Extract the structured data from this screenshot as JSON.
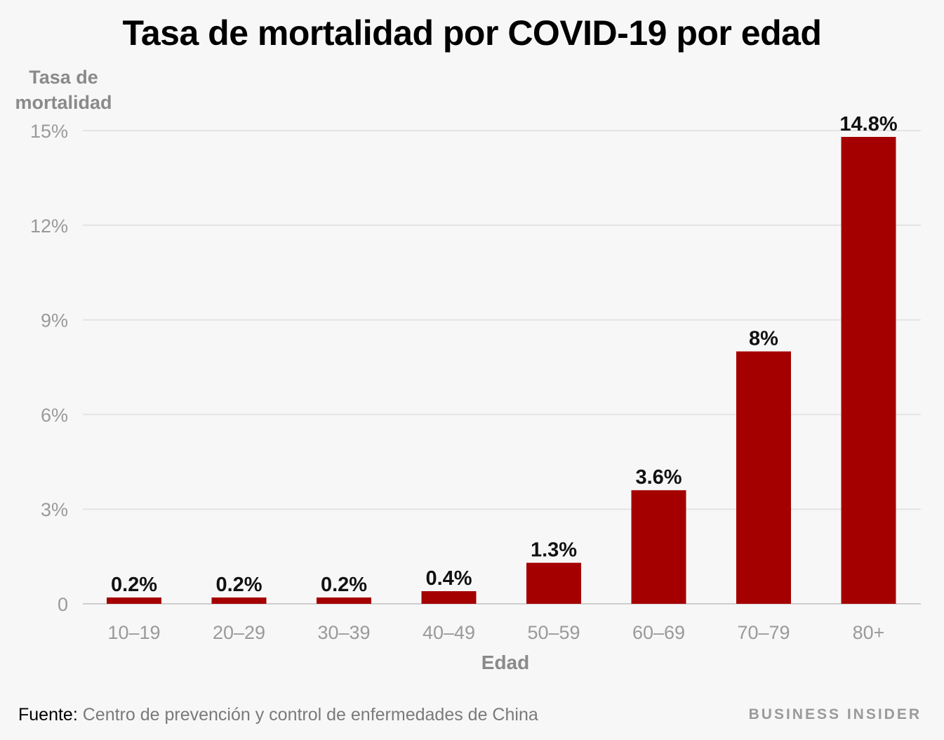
{
  "chart_data": {
    "type": "bar",
    "title": "Tasa de mortalidad por COVID-19 por edad",
    "ylabel": "Tasa de mortalidad",
    "xlabel": "Edad",
    "categories": [
      "10–19",
      "20–29",
      "30–39",
      "40–49",
      "50–59",
      "60–69",
      "70–79",
      "80+"
    ],
    "values": [
      0.2,
      0.2,
      0.2,
      0.4,
      1.3,
      3.6,
      8,
      14.8
    ],
    "value_labels": [
      "0.2%",
      "0.2%",
      "0.2%",
      "0.4%",
      "1.3%",
      "3.6%",
      "8%",
      "14.8%"
    ],
    "ylim": [
      0,
      15
    ],
    "yticks": [
      0,
      3,
      6,
      9,
      12,
      15
    ],
    "ytick_labels": [
      "0",
      "3%",
      "6%",
      "9%",
      "12%",
      "15%"
    ],
    "grid": true,
    "bar_color": "#a50000"
  },
  "footer": {
    "source_label": "Fuente:",
    "source_text": "Centro de prevención y control de enfermedades de China",
    "brand": "BUSINESS INSIDER"
  }
}
